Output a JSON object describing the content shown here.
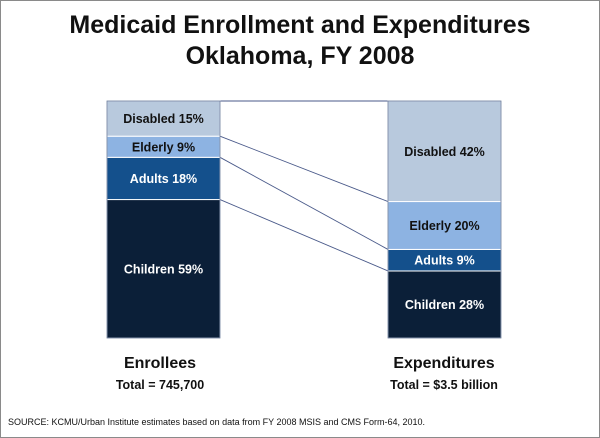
{
  "title_line1": "Medicaid Enrollment and Expenditures",
  "title_line2": "Oklahoma, FY 2008",
  "chart_data": {
    "type": "bar",
    "stacked": true,
    "percent_stacked": true,
    "categories": [
      "Enrollees",
      "Expenditures"
    ],
    "category_totals": [
      "Total = 745,700",
      "Total = $3.5 billion"
    ],
    "series": [
      {
        "name": "Children",
        "values": [
          59,
          28
        ],
        "color": "#0b1f38",
        "label_color": "#ffffff"
      },
      {
        "name": "Adults",
        "values": [
          18,
          9
        ],
        "color": "#14508c",
        "label_color": "#ffffff"
      },
      {
        "name": "Elderly",
        "values": [
          9,
          20
        ],
        "color": "#8db3e2",
        "label_color": "#111111"
      },
      {
        "name": "Disabled",
        "values": [
          15,
          42
        ],
        "color": "#b8c9dd",
        "label_color": "#111111"
      }
    ],
    "labels": [
      [
        "Children 59%",
        "Children 28%"
      ],
      [
        "Adults 18%",
        "Adults 9%"
      ],
      [
        "Elderly 9%",
        "Elderly 20%"
      ],
      [
        "Disabled 15%",
        "Disabled 42%"
      ]
    ],
    "connector_lines": true
  },
  "source": "SOURCE:  KCMU/Urban Institute estimates based on data from FY 2008 MSIS and CMS Form-64,  2010."
}
